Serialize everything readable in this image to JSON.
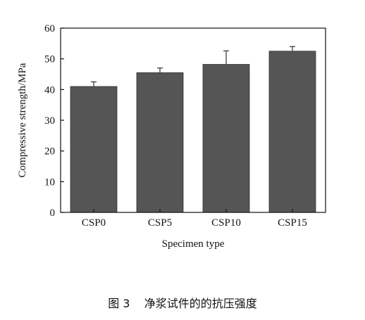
{
  "chart_data": {
    "type": "bar",
    "categories": [
      "CSP0",
      "CSP5",
      "CSP10",
      "CSP15"
    ],
    "values": [
      41.0,
      45.5,
      48.2,
      52.5
    ],
    "errors": [
      1.5,
      1.5,
      4.4,
      1.5
    ],
    "xlabel": "Specimen type",
    "ylabel": "Compressive strength/MPa",
    "ylim": [
      0,
      60
    ],
    "yticks": [
      0,
      10,
      20,
      30,
      40,
      50,
      60
    ],
    "grid": false,
    "bar_color": "#555555"
  },
  "caption": "图 3    净浆试件的的抗压强度"
}
